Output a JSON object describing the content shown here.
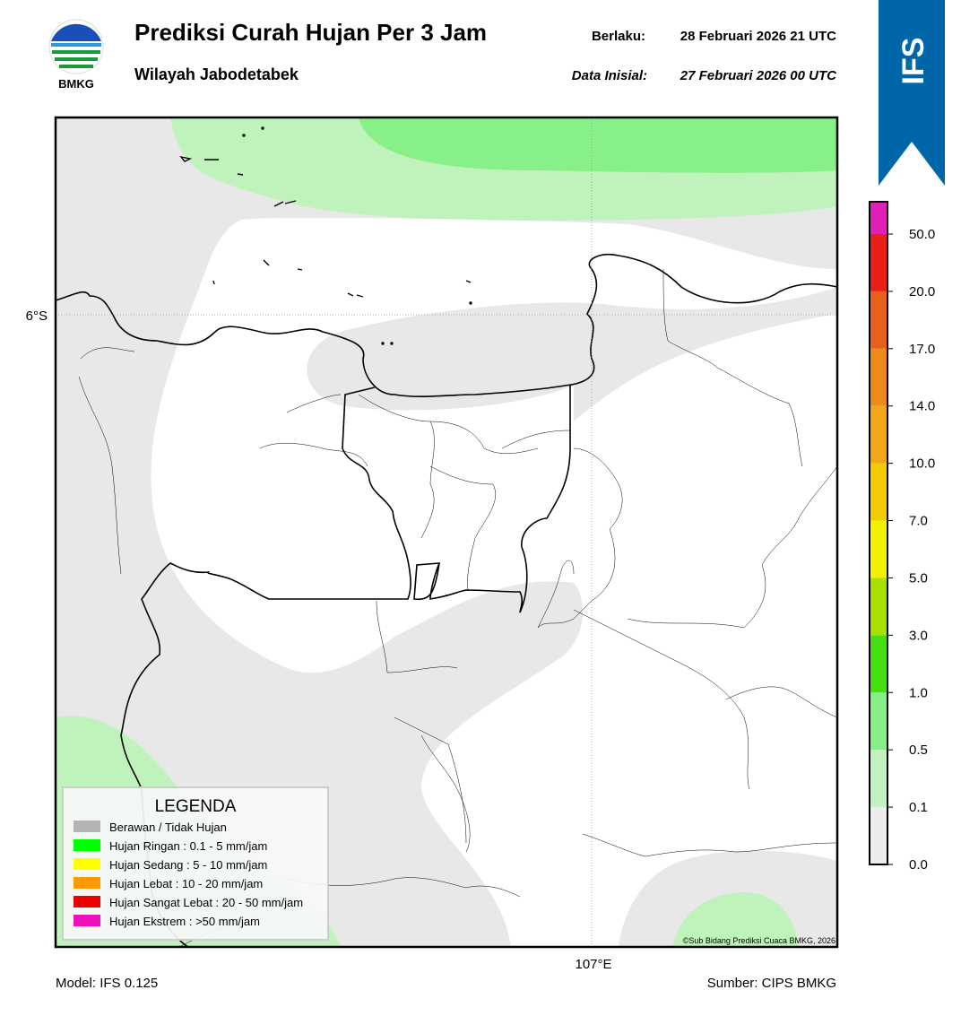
{
  "header": {
    "logo_text": "BMKG",
    "title": "Prediksi Curah Hujan Per 3 Jam",
    "subtitle": "Wilayah Jabodetabek",
    "valid_label": "Berlaku:",
    "valid_time": "28 Februari 2026 21 UTC",
    "init_label": "Data Inisial:",
    "init_time": "27 Februari 2026 00 UTC"
  },
  "badge": "IFS",
  "map": {
    "lat_label": "6°S",
    "lon_label": "107°E",
    "copyright": "©Sub Bidang Prediksi Cuaca BMKG, 2026"
  },
  "legend": {
    "title": "LEGENDA",
    "items": [
      {
        "label": "Berawan / Tidak Hujan",
        "color": "#b4b4b4"
      },
      {
        "label": "Hujan Ringan : 0.1 - 5 mm/jam",
        "color": "#00ff00"
      },
      {
        "label": "Hujan Sedang : 5 - 10 mm/jam",
        "color": "#ffff00"
      },
      {
        "label": "Hujan Lebat : 10 - 20 mm/jam",
        "color": "#ff9900"
      },
      {
        "label": "Hujan Sangat Lebat : 20 - 50 mm/jam",
        "color": "#ee0000"
      },
      {
        "label": "Hujan Ekstrem : >50 mm/jam",
        "color": "#ee11bb"
      }
    ]
  },
  "colorbar": {
    "ticks": [
      "0.0",
      "0.1",
      "0.5",
      "1.0",
      "3.0",
      "5.0",
      "7.0",
      "10.0",
      "14.0",
      "17.0",
      "20.0",
      "50.0"
    ],
    "colors": [
      "#ececec",
      "#c2f2c2",
      "#88ee88",
      "#44e011",
      "#a8e000",
      "#f2f200",
      "#f2cc00",
      "#f0a818",
      "#ee8a18",
      "#e8601a",
      "#e82018",
      "#e020b8"
    ]
  },
  "footer": {
    "model": "Model: IFS 0.125",
    "source": "Sumber: CIPS BMKG"
  }
}
